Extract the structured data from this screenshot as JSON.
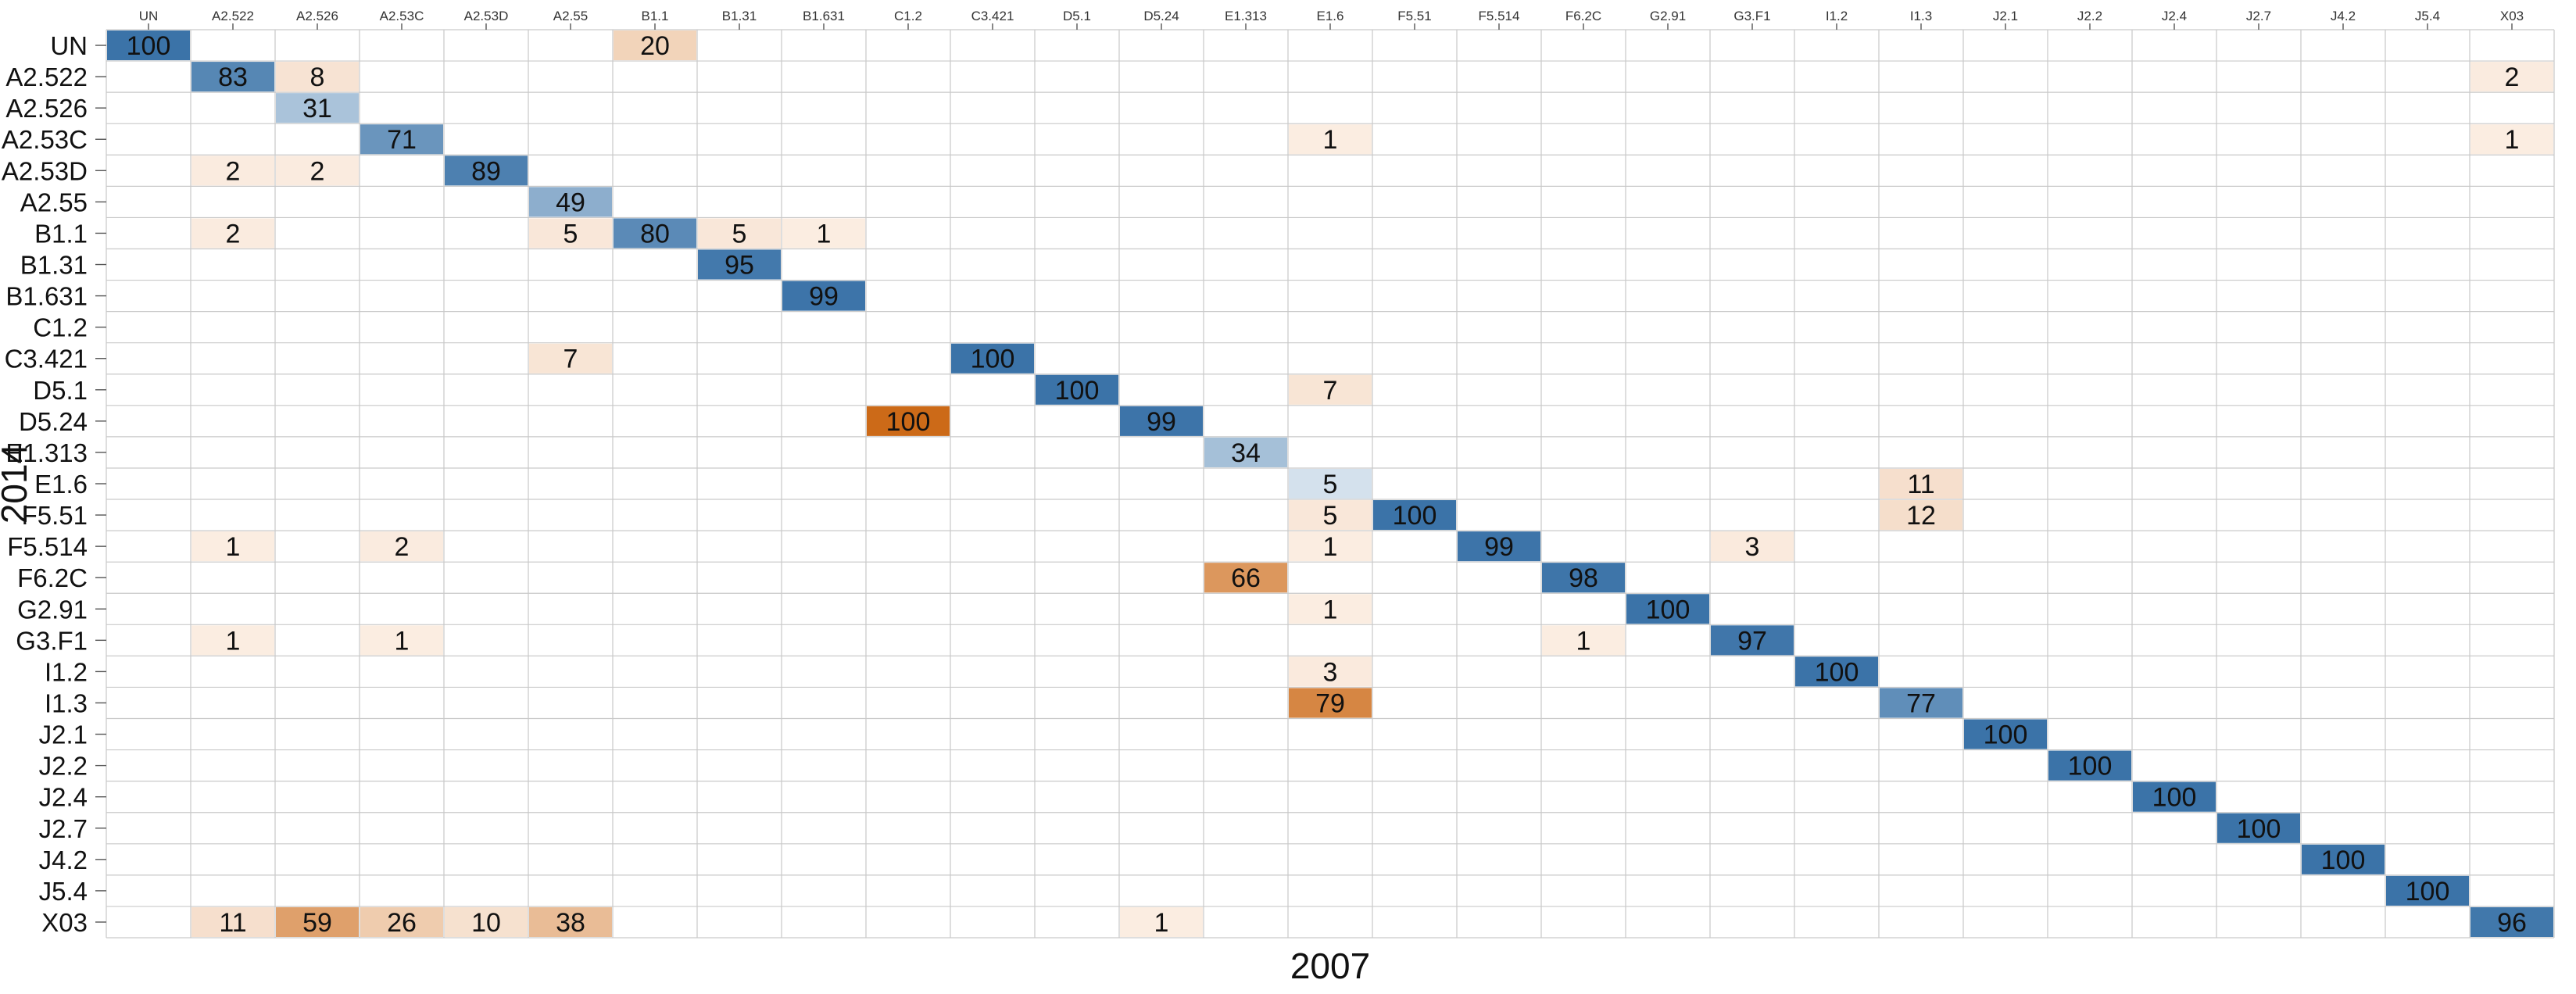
{
  "chart_data": {
    "type": "heatmap",
    "xlabel": "2007",
    "ylabel": "2014",
    "columns": [
      "UN",
      "A2.522",
      "A2.526",
      "A2.53C",
      "A2.53D",
      "A2.55",
      "B1.1",
      "B1.31",
      "B1.631",
      "C1.2",
      "C3.421",
      "D5.1",
      "D5.24",
      "E1.313",
      "E1.6",
      "F5.51",
      "F5.514",
      "F6.2C",
      "G2.91",
      "G3.F1",
      "I1.2",
      "I1.3",
      "J2.1",
      "J2.2",
      "J2.4",
      "J2.7",
      "J4.2",
      "J5.4",
      "X03"
    ],
    "rows": [
      "UN",
      "A2.522",
      "A2.526",
      "A2.53C",
      "A2.53D",
      "A2.55",
      "B1.1",
      "B1.31",
      "B1.631",
      "C1.2",
      "C3.421",
      "D5.1",
      "D5.24",
      "E1.313",
      "E1.6",
      "F5.51",
      "F5.514",
      "F6.2C",
      "G2.91",
      "G3.F1",
      "I1.2",
      "I1.3",
      "J2.1",
      "J2.2",
      "J2.4",
      "J2.7",
      "J4.2",
      "J5.4",
      "X03"
    ],
    "color_scale": {
      "diagonal": "blue",
      "off_diagonal": "orange",
      "blue_low": "#dce7f1",
      "blue_high": "#3b73a8",
      "orange_low": "#fbeee3",
      "orange_high": "#cc6a18"
    },
    "cells": [
      {
        "row": "UN",
        "col": "UN",
        "value": 100
      },
      {
        "row": "UN",
        "col": "B1.1",
        "value": 20
      },
      {
        "row": "A2.522",
        "col": "A2.522",
        "value": 83
      },
      {
        "row": "A2.522",
        "col": "A2.526",
        "value": 8
      },
      {
        "row": "A2.522",
        "col": "X03",
        "value": 2
      },
      {
        "row": "A2.526",
        "col": "A2.526",
        "value": 31
      },
      {
        "row": "A2.53C",
        "col": "A2.53C",
        "value": 71
      },
      {
        "row": "A2.53C",
        "col": "E1.6",
        "value": 1
      },
      {
        "row": "A2.53C",
        "col": "X03",
        "value": 1
      },
      {
        "row": "A2.53D",
        "col": "A2.522",
        "value": 2
      },
      {
        "row": "A2.53D",
        "col": "A2.526",
        "value": 2
      },
      {
        "row": "A2.53D",
        "col": "A2.53D",
        "value": 89
      },
      {
        "row": "A2.55",
        "col": "A2.55",
        "value": 49
      },
      {
        "row": "B1.1",
        "col": "A2.522",
        "value": 2
      },
      {
        "row": "B1.1",
        "col": "A2.55",
        "value": 5
      },
      {
        "row": "B1.1",
        "col": "B1.1",
        "value": 80
      },
      {
        "row": "B1.1",
        "col": "B1.31",
        "value": 5
      },
      {
        "row": "B1.1",
        "col": "B1.631",
        "value": 1
      },
      {
        "row": "B1.31",
        "col": "B1.31",
        "value": 95
      },
      {
        "row": "B1.631",
        "col": "B1.631",
        "value": 99
      },
      {
        "row": "C3.421",
        "col": "A2.55",
        "value": 7
      },
      {
        "row": "C3.421",
        "col": "C3.421",
        "value": 100
      },
      {
        "row": "D5.1",
        "col": "D5.1",
        "value": 100
      },
      {
        "row": "D5.1",
        "col": "E1.6",
        "value": 7
      },
      {
        "row": "D5.24",
        "col": "C1.2",
        "value": 100
      },
      {
        "row": "D5.24",
        "col": "D5.24",
        "value": 99
      },
      {
        "row": "E1.313",
        "col": "E1.313",
        "value": 34
      },
      {
        "row": "E1.6",
        "col": "E1.6",
        "value": 5
      },
      {
        "row": "E1.6",
        "col": "I1.3",
        "value": 11
      },
      {
        "row": "F5.51",
        "col": "E1.6",
        "value": 5
      },
      {
        "row": "F5.51",
        "col": "F5.51",
        "value": 100
      },
      {
        "row": "F5.51",
        "col": "I1.3",
        "value": 12
      },
      {
        "row": "F5.514",
        "col": "A2.522",
        "value": 1
      },
      {
        "row": "F5.514",
        "col": "A2.53C",
        "value": 2
      },
      {
        "row": "F5.514",
        "col": "E1.6",
        "value": 1
      },
      {
        "row": "F5.514",
        "col": "F5.514",
        "value": 99
      },
      {
        "row": "F5.514",
        "col": "G3.F1",
        "value": 3
      },
      {
        "row": "F6.2C",
        "col": "E1.313",
        "value": 66
      },
      {
        "row": "F6.2C",
        "col": "F6.2C",
        "value": 98
      },
      {
        "row": "G2.91",
        "col": "E1.6",
        "value": 1
      },
      {
        "row": "G2.91",
        "col": "G2.91",
        "value": 100
      },
      {
        "row": "G3.F1",
        "col": "A2.522",
        "value": 1
      },
      {
        "row": "G3.F1",
        "col": "A2.53C",
        "value": 1
      },
      {
        "row": "G3.F1",
        "col": "F6.2C",
        "value": 1
      },
      {
        "row": "G3.F1",
        "col": "G3.F1",
        "value": 97
      },
      {
        "row": "I1.2",
        "col": "E1.6",
        "value": 3
      },
      {
        "row": "I1.2",
        "col": "I1.2",
        "value": 100
      },
      {
        "row": "I1.3",
        "col": "E1.6",
        "value": 79
      },
      {
        "row": "I1.3",
        "col": "I1.3",
        "value": 77
      },
      {
        "row": "J2.1",
        "col": "J2.1",
        "value": 100
      },
      {
        "row": "J2.2",
        "col": "J2.2",
        "value": 100
      },
      {
        "row": "J2.4",
        "col": "J2.4",
        "value": 100
      },
      {
        "row": "J2.7",
        "col": "J2.7",
        "value": 100
      },
      {
        "row": "J4.2",
        "col": "J4.2",
        "value": 100
      },
      {
        "row": "J5.4",
        "col": "J5.4",
        "value": 100
      },
      {
        "row": "X03",
        "col": "A2.522",
        "value": 11
      },
      {
        "row": "X03",
        "col": "A2.526",
        "value": 59
      },
      {
        "row": "X03",
        "col": "A2.53C",
        "value": 26
      },
      {
        "row": "X03",
        "col": "A2.53D",
        "value": 10
      },
      {
        "row": "X03",
        "col": "A2.55",
        "value": 38
      },
      {
        "row": "X03",
        "col": "D5.24",
        "value": 1
      },
      {
        "row": "X03",
        "col": "X03",
        "value": 96
      }
    ],
    "grid": true,
    "legend": "none"
  }
}
